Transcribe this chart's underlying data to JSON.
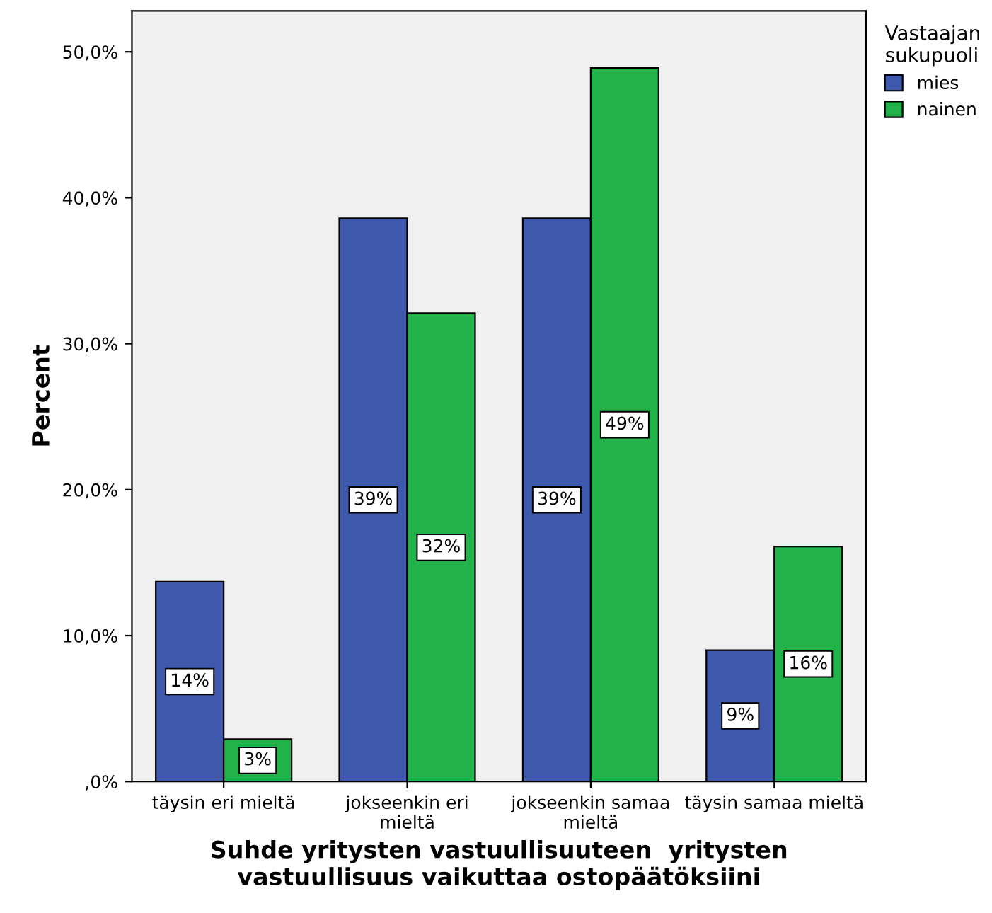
{
  "chart_data": {
    "type": "bar",
    "ylabel": "Percent",
    "xlabel": "Suhde yritysten vastuullisuuteen  yritysten\nvastuullisuus vaikuttaa ostopäätöksiini",
    "legend_title": "Vastaajan\nsukupuoli",
    "legend": "top right",
    "grid": false,
    "categories": [
      "täysin eri mieltä",
      "jokseenkin eri\nmieltä",
      "jokseenkin samaa\nmieltä",
      "täysin samaa mieltä"
    ],
    "series": [
      {
        "name": "mies",
        "color": "#3e58ac",
        "values": [
          13.7,
          38.6,
          38.6,
          9.0
        ],
        "value_labels": [
          "14%",
          "39%",
          "39%",
          "9%"
        ]
      },
      {
        "name": "nainen",
        "color": "#21b24a",
        "values": [
          2.9,
          32.1,
          48.9,
          16.1
        ],
        "value_labels": [
          "3%",
          "32%",
          "49%",
          "16%"
        ]
      }
    ],
    "ylim": [
      0,
      52.8
    ],
    "yticks": [
      {
        "value": 0,
        "label": ",0%"
      },
      {
        "value": 10,
        "label": "10,0%"
      },
      {
        "value": 20,
        "label": "20,0%"
      },
      {
        "value": 30,
        "label": "30,0%"
      },
      {
        "value": 40,
        "label": "40,0%"
      },
      {
        "value": 50,
        "label": "50,0%"
      }
    ]
  }
}
